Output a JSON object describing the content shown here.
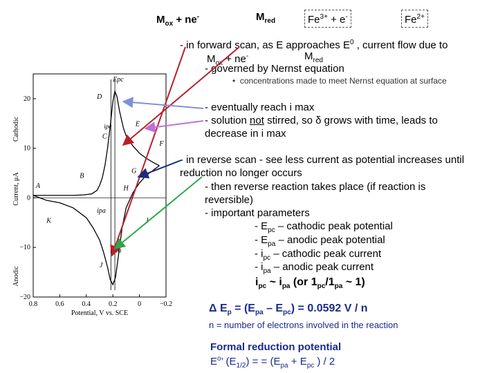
{
  "header": {
    "mox_base": "M",
    "mox_sub": "ox",
    "plus_ne": " + ne",
    "e_sup1": "-",
    "mred_base": "M",
    "mred_sub": "red",
    "fe3": "Fe",
    "fe3_sup": "3+",
    "fe_plus_e": " + e",
    "e_sup2": "-",
    "fe2": "Fe",
    "fe2_sup": "2+"
  },
  "text": {
    "forward_a": "- in forward scan, as E approaches E",
    "forward_sup": "0",
    "forward_b": " , current flow due to",
    "eq_m": "M",
    "eq_ox": "ox",
    "eq_ne": " + ne",
    "eq_minus": "-",
    "eq_m2": "M",
    "eq_red": "red",
    "nernst": "- governed by Nernst equation",
    "bullet_symbol": "•",
    "bullet": "concentrations made to meet Nernst equation at surface",
    "imax": "- eventually reach i max",
    "stirred_a": "- solution ",
    "stirred_not": "not",
    "stirred_b": " stirred, so δ grows with time, leads to",
    "decrease": "decrease in i max",
    "reverse1": "- in reverse scan - see less current as potential increases until",
    "reverse2": "reduction no longer occurs",
    "then1": "- then reverse reaction takes place (if reaction is",
    "then2": "reversible)",
    "important": "- important parameters",
    "epc_a": "- E",
    "epc_sub": "pc",
    "epc_b": " – cathodic peak potential",
    "epa_a": "- E",
    "epa_sub": "pa",
    "epa_b": " – anodic peak potential",
    "ipc_a": "- i",
    "ipc_sub": "pc",
    "ipc_b": " – cathodic peak current",
    "ipa_a": "- i",
    "ipa_sub": "pa",
    "ipa_b": " – anodic peak current",
    "ratio_i1": "i",
    "ratio_pc": "pc",
    "ratio_tilde": " ~ ",
    "ratio_i2": "i",
    "ratio_pa": "pa",
    "ratio_or": "  (or  1",
    "ratio_pc2": "pc",
    "ratio_slash": "/1",
    "ratio_pa2": "pa",
    "ratio_end": " ~ 1)",
    "delta_a": "Δ E",
    "delta_p": "p",
    "delta_b": " = (E",
    "delta_pa": "pa",
    "delta_c": " – E",
    "delta_pc": "pc",
    "delta_d": ") = 0.0592 V / n",
    "n_def": "n = number of electrons involved in the reaction",
    "formal_title": "Formal reduction potential",
    "formal_a": "E",
    "formal_sup": "o",
    "formal_b": "’ (E",
    "formal_sub": "1/2",
    "formal_c": ") = = (E",
    "formal_pa": "pa",
    "formal_d": " + E",
    "formal_pc": "pc",
    "formal_e": " ) / 2"
  },
  "chart_data": {
    "type": "line",
    "title": "",
    "xlabel": "Potential, V vs. SCE",
    "ylabel": "Current, μA",
    "ylabel_cathodic": "Cathodic",
    "ylabel_anodic": "Anodic",
    "xlim": [
      0.8,
      -0.2
    ],
    "ylim": [
      -20,
      25
    ],
    "xticks": [
      "0.8",
      "0.6",
      "0.4",
      "0.2",
      "0",
      "−0.2"
    ],
    "yticks": [
      "20",
      "10",
      "0",
      "−10",
      "−20"
    ],
    "series": [
      {
        "name": "forward scan (cathodic)",
        "x": [
          0.8,
          0.7,
          0.6,
          0.5,
          0.42,
          0.36,
          0.32,
          0.3,
          0.28,
          0.26,
          0.24,
          0.22,
          0.2,
          0.185,
          0.17,
          0.15,
          0.12,
          0.1,
          0.05,
          0,
          -0.05,
          -0.1,
          -0.15
        ],
        "y": [
          0.5,
          0.5,
          0.5,
          0.5,
          0.6,
          0.8,
          1.5,
          2.5,
          4,
          6.5,
          10,
          14.5,
          19.5,
          21.5,
          20.5,
          17.5,
          14,
          12.5,
          10.5,
          9,
          8,
          7.2,
          6.5
        ]
      },
      {
        "name": "reverse scan (anodic)",
        "x": [
          -0.15,
          -0.1,
          -0.05,
          0,
          0.05,
          0.1,
          0.13,
          0.16,
          0.18,
          0.2,
          0.22,
          0.24,
          0.27,
          0.3,
          0.35,
          0.4,
          0.5,
          0.6,
          0.7,
          0.8
        ],
        "y": [
          6.5,
          5.5,
          4.5,
          3,
          1,
          -2,
          -6,
          -12,
          -16,
          -17.5,
          -16.5,
          -14,
          -11,
          -8.5,
          -6,
          -4,
          -2,
          -1,
          -0.5,
          0.5
        ]
      }
    ],
    "point_labels": [
      "E_pc",
      "D",
      "C",
      "E",
      "F",
      "B",
      "G",
      "A",
      "H",
      "i_pa",
      "I",
      "K",
      "E_pa",
      "J"
    ],
    "annotations": [
      "i_pc"
    ]
  }
}
